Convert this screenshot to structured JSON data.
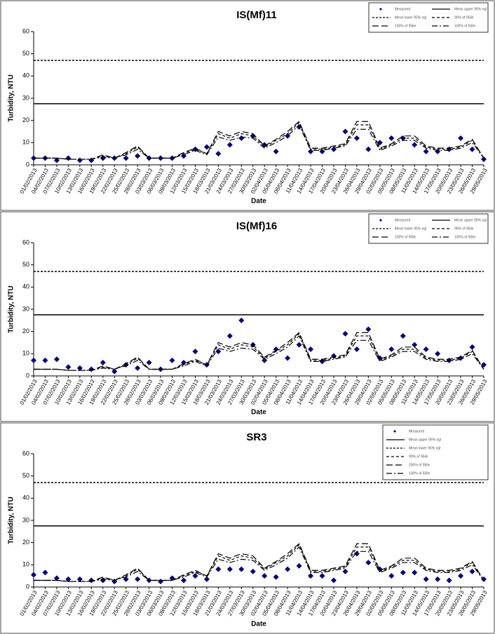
{
  "chart_data": [
    {
      "type": "line",
      "title": "IS(Mf)11",
      "xlabel": "Date",
      "ylabel": "Turbidity, NTU",
      "ylim": [
        0,
        60
      ],
      "yticks": [
        0,
        10,
        20,
        30,
        40,
        50,
        60
      ],
      "legend_position": "upper right",
      "legend_columns": 2,
      "categories": [
        "01/02/2013",
        "04/02/2013",
        "07/02/2013",
        "10/02/2013",
        "13/02/2013",
        "16/02/2013",
        "19/02/2013",
        "22/02/2013",
        "25/02/2013",
        "28/02/2013",
        "03/03/2013",
        "06/03/2013",
        "09/03/2013",
        "12/03/2013",
        "15/03/2013",
        "18/03/2013",
        "21/03/2013",
        "24/03/2013",
        "27/03/2013",
        "30/03/2013",
        "02/04/2013",
        "05/04/2013",
        "08/04/2013",
        "11/04/2013",
        "14/04/2013",
        "17/04/2013",
        "20/04/2013",
        "23/04/2013",
        "26/04/2013",
        "29/04/2013",
        "02/05/2013",
        "05/05/2013",
        "08/05/2013",
        "11/05/2013",
        "14/05/2013",
        "17/05/2013",
        "20/05/2013",
        "23/05/2013",
        "26/05/2013",
        "29/05/2013"
      ],
      "hlines": [
        {
          "name": "Mean upper 95% ngl",
          "value": 27.5,
          "dash": "none"
        },
        {
          "name": "Mean lower 95% ngl",
          "value": 47,
          "dash": "3 2"
        }
      ],
      "series": [
        {
          "name": "Measured",
          "marker": "diamond",
          "color": "#000080",
          "values": [
            3,
            3,
            2,
            3,
            2,
            2,
            3,
            3,
            3,
            4,
            3,
            3,
            3,
            4,
            7,
            8,
            5,
            9,
            12,
            13,
            9,
            6,
            13,
            17,
            6,
            6,
            7,
            15,
            12,
            7,
            10,
            12,
            12,
            9,
            6,
            6,
            7,
            12,
            7,
            2.5
          ]
        },
        {
          "name": "90% of 95ile",
          "color": "#000000",
          "dash": "4 3",
          "values": [
            3,
            3,
            3,
            2.5,
            2.5,
            2.5,
            4,
            3,
            5,
            8,
            3,
            3,
            3,
            5,
            7,
            5,
            14,
            12,
            14,
            13,
            8,
            11,
            14,
            19,
            7,
            7,
            8,
            9,
            18,
            18,
            7,
            9,
            12,
            12,
            8,
            7,
            7,
            8,
            11,
            3
          ]
        },
        {
          "name": "100% of 95ile",
          "color": "#000000",
          "dash": "9 4",
          "values": [
            3,
            3,
            3,
            2.5,
            2.5,
            2.5,
            4.5,
            3,
            5.5,
            8.5,
            3,
            3,
            3,
            5.5,
            7.5,
            5,
            15,
            13,
            15,
            14,
            8.5,
            11.5,
            15,
            19.5,
            7.5,
            7.5,
            8.5,
            9.5,
            19.5,
            19.5,
            7.5,
            9.5,
            13,
            13,
            8.5,
            7.5,
            7.5,
            8.5,
            11.5,
            3
          ]
        },
        {
          "name": "100% of 50ile",
          "color": "#000000",
          "dash": "8 3 2 3",
          "values": [
            3,
            3,
            3,
            2.5,
            2.5,
            2.5,
            3.5,
            3,
            4.5,
            7,
            3,
            3,
            3,
            4.5,
            6.5,
            4.5,
            12.5,
            11,
            12.5,
            12,
            7.5,
            10,
            13,
            18,
            6.5,
            6.5,
            7.5,
            8.5,
            16,
            16,
            6.5,
            8.5,
            11,
            11,
            7.5,
            6.5,
            6.5,
            7.5,
            10,
            3
          ]
        }
      ]
    },
    {
      "type": "line",
      "title": "IS(Mf)16",
      "xlabel": "Date",
      "ylabel": "Turbidity, NTU",
      "ylim": [
        0,
        60
      ],
      "yticks": [
        0,
        10,
        20,
        30,
        40,
        50,
        60
      ],
      "legend_position": "upper right",
      "legend_columns": 2,
      "categories": [
        "01/02/2013",
        "04/02/2013",
        "07/02/2013",
        "10/02/2013",
        "13/02/2013",
        "16/02/2013",
        "19/02/2013",
        "22/02/2013",
        "25/02/2013",
        "28/02/2013",
        "03/03/2013",
        "06/03/2013",
        "09/03/2013",
        "12/03/2013",
        "15/03/2013",
        "18/03/2013",
        "21/03/2013",
        "24/03/2013",
        "27/03/2013",
        "30/03/2013",
        "02/04/2013",
        "05/04/2013",
        "08/04/2013",
        "11/04/2013",
        "14/04/2013",
        "17/04/2013",
        "20/04/2013",
        "23/04/2013",
        "26/04/2013",
        "29/04/2013",
        "02/05/2013",
        "05/05/2013",
        "08/05/2013",
        "11/05/2013",
        "14/05/2013",
        "17/05/2013",
        "20/05/2013",
        "23/05/2013",
        "26/05/2013",
        "29/05/2013"
      ],
      "hlines": [
        {
          "name": "Mean upper 95% ngl",
          "value": 27.5,
          "dash": "none"
        },
        {
          "name": "Mean lower 95% ngl",
          "value": 47,
          "dash": "3 2"
        }
      ],
      "series": [
        {
          "name": "Measured",
          "marker": "diamond",
          "color": "#000080",
          "values": [
            7,
            7,
            7.5,
            4,
            3.5,
            3,
            6,
            2,
            5,
            3.5,
            6,
            3,
            7,
            6,
            11,
            5,
            11,
            18,
            25,
            14,
            7,
            12,
            8,
            14,
            12,
            6.5,
            9,
            19,
            12,
            21,
            8,
            12,
            18,
            14,
            12,
            10,
            7,
            8,
            13,
            5
          ]
        },
        {
          "name": "90% of 95ile",
          "color": "#000000",
          "dash": "4 3",
          "values": [
            3,
            3,
            3,
            2.5,
            2.5,
            2.5,
            4,
            3,
            5,
            8,
            3,
            3,
            3,
            5,
            7,
            5,
            14,
            12,
            14,
            13,
            8,
            11,
            14,
            19,
            7,
            7,
            8,
            9,
            18,
            18,
            7,
            9,
            12,
            12,
            8,
            7,
            7,
            8,
            11,
            3
          ]
        },
        {
          "name": "100% of 95ile",
          "color": "#000000",
          "dash": "9 4",
          "values": [
            3,
            3,
            3,
            2.5,
            2.5,
            2.5,
            4.5,
            3,
            5.5,
            8.5,
            3,
            3,
            3,
            5.5,
            7.5,
            5,
            15,
            13,
            15,
            14,
            8.5,
            11.5,
            15,
            19.5,
            7.5,
            7.5,
            8.5,
            9.5,
            19.5,
            19.5,
            7.5,
            9.5,
            13,
            13,
            8.5,
            7.5,
            7.5,
            8.5,
            11.5,
            3
          ]
        },
        {
          "name": "100% of 50ile",
          "color": "#000000",
          "dash": "8 3 2 3",
          "values": [
            3,
            3,
            3,
            2.5,
            2.5,
            2.5,
            3.5,
            3,
            4.5,
            7,
            3,
            3,
            3,
            4.5,
            6.5,
            4.5,
            12.5,
            11,
            12.5,
            12,
            7.5,
            10,
            13,
            18,
            6.5,
            6.5,
            7.5,
            8.5,
            16,
            16,
            6.5,
            8.5,
            11,
            11,
            7.5,
            6.5,
            6.5,
            7.5,
            10,
            3
          ]
        }
      ]
    },
    {
      "type": "line",
      "title": "SR3",
      "xlabel": "Date",
      "ylabel": "Turbidity, NTU",
      "ylim": [
        0,
        60
      ],
      "yticks": [
        0,
        10,
        20,
        30,
        40,
        50,
        60
      ],
      "legend_position": "upper right",
      "legend_columns": 1,
      "categories": [
        "01/02/2013",
        "04/02/2013",
        "07/02/2013",
        "10/02/2013",
        "13/02/2013",
        "16/02/2013",
        "19/02/2013",
        "22/02/2013",
        "25/02/2013",
        "28/02/2013",
        "03/03/2013",
        "06/03/2013",
        "09/03/2013",
        "12/03/2013",
        "15/03/2013",
        "18/03/2013",
        "21/03/2013",
        "24/03/2013",
        "27/03/2013",
        "30/03/2013",
        "02/04/2013",
        "05/04/2013",
        "08/04/2013",
        "11/04/2013",
        "14/04/2013",
        "17/04/2013",
        "20/04/2013",
        "23/04/2013",
        "26/04/2013",
        "29/04/2013",
        "02/05/2013",
        "05/05/2013",
        "08/05/2013",
        "11/05/2013",
        "14/05/2013",
        "17/05/2013",
        "20/05/2013",
        "23/05/2013",
        "26/05/2013",
        "29/05/2013"
      ],
      "hlines": [
        {
          "name": "Mean upper 95% ngl",
          "value": 27.5,
          "dash": "none"
        },
        {
          "name": "Mean lower 95% ngl",
          "value": 47,
          "dash": "3 2"
        }
      ],
      "series": [
        {
          "name": "Measured",
          "marker": "diamond",
          "color": "#000080",
          "values": [
            5.5,
            6.5,
            4,
            3.5,
            3.5,
            3,
            3,
            2.5,
            3.5,
            3.5,
            3,
            2.5,
            4,
            3,
            5,
            3.5,
            8,
            8,
            8,
            7,
            5,
            4.5,
            8,
            9.5,
            5,
            5,
            3,
            7,
            15,
            11,
            8,
            5,
            6.5,
            6.5,
            3.5,
            3.5,
            3,
            5,
            7,
            3.5
          ]
        },
        {
          "name": "90% of 95ile",
          "color": "#000000",
          "dash": "4 3",
          "values": [
            3,
            3,
            3,
            2.5,
            2.5,
            2.5,
            4,
            3,
            5,
            8,
            3,
            3,
            3,
            5,
            7,
            5,
            14,
            12,
            14,
            13,
            8,
            11,
            14,
            19,
            7,
            7,
            8,
            9,
            18,
            18,
            7,
            9,
            12,
            12,
            8,
            7,
            7,
            8,
            11,
            3
          ]
        },
        {
          "name": "100% of 95ile",
          "color": "#000000",
          "dash": "9 4",
          "values": [
            3,
            3,
            3,
            2.5,
            2.5,
            2.5,
            4.5,
            3,
            5.5,
            8.5,
            3,
            3,
            3,
            5.5,
            7.5,
            5,
            15,
            13,
            15,
            14,
            8.5,
            11.5,
            15,
            19.5,
            7.5,
            7.5,
            8.5,
            9.5,
            19.5,
            19.5,
            7.5,
            9.5,
            13,
            13,
            8.5,
            7.5,
            7.5,
            8.5,
            11.5,
            3
          ]
        },
        {
          "name": "100% of 50ile",
          "color": "#000000",
          "dash": "8 3 2 3",
          "values": [
            3,
            3,
            3,
            2.5,
            2.5,
            2.5,
            3.5,
            3,
            4.5,
            7,
            3,
            3,
            3,
            4.5,
            6.5,
            4.5,
            12.5,
            11,
            12.5,
            12,
            7.5,
            10,
            13,
            18,
            6.5,
            6.5,
            7.5,
            8.5,
            16,
            16,
            6.5,
            8.5,
            11,
            11,
            7.5,
            6.5,
            6.5,
            7.5,
            10,
            3
          ]
        }
      ]
    }
  ]
}
